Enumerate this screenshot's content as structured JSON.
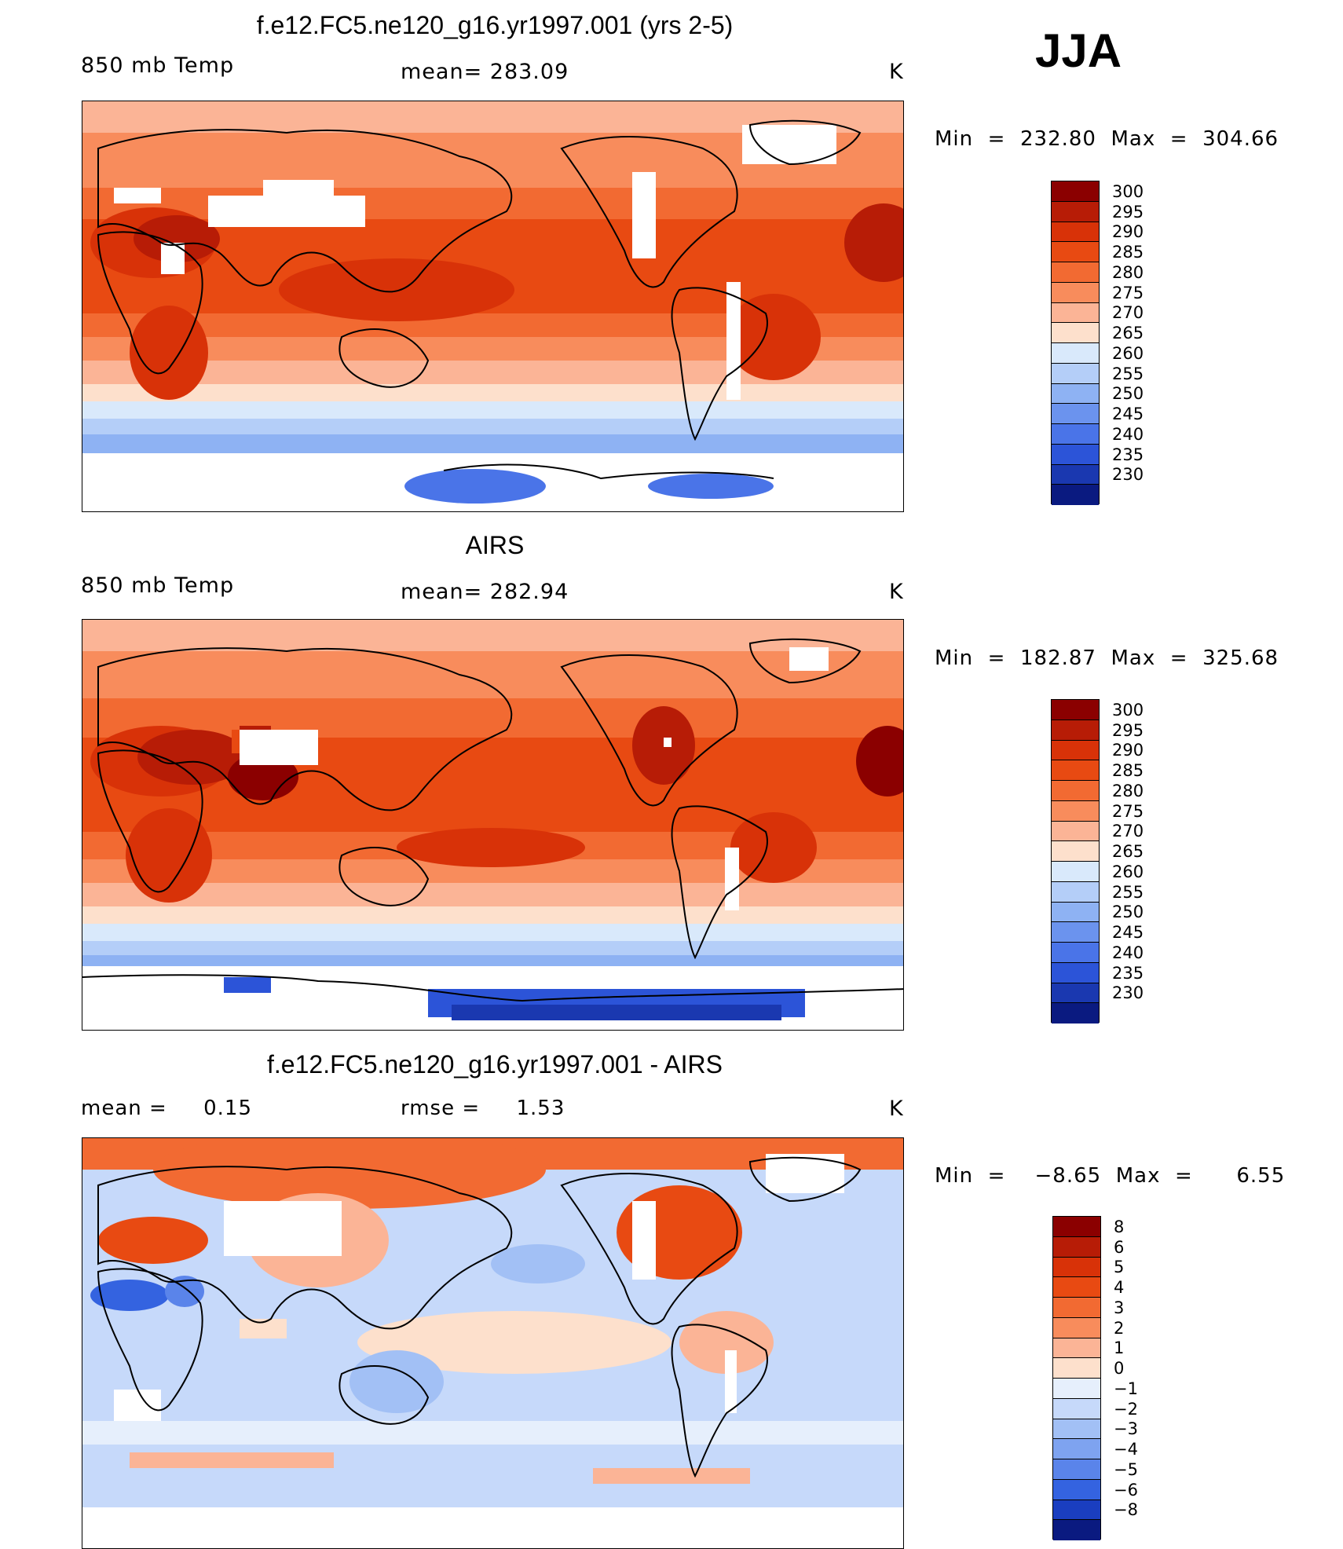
{
  "season": "JJA",
  "panels": [
    {
      "id": "model",
      "title": "f.e12.FC5.ne120_g16.yr1997.001 (yrs 2-5)",
      "left_label": "850 mb Temp",
      "center_label": "mean= 283.09",
      "units": "K",
      "stats": "Min  =  232.80  Max  =  304.66",
      "colorbar": {
        "labels": [
          "300",
          "295",
          "290",
          "285",
          "280",
          "275",
          "270",
          "265",
          "260",
          "255",
          "250",
          "245",
          "240",
          "235",
          "230"
        ],
        "colors": [
          "#8b0000",
          "#b71c06",
          "#d83208",
          "#e84a12",
          "#f26a32",
          "#f88c5c",
          "#fbb496",
          "#fde0cc",
          "#d9e9fb",
          "#b4cef8",
          "#8eb2f3",
          "#6b93ee",
          "#4a74e8",
          "#2c54d8",
          "#1a38b0",
          "#0a1a80"
        ]
      },
      "chart_data": {
        "type": "heatmap",
        "variable": "850 mb Temp",
        "units": "K",
        "mean": 283.09,
        "min": 232.8,
        "max": 304.66,
        "levels": [
          230,
          235,
          240,
          245,
          250,
          255,
          260,
          265,
          270,
          275,
          280,
          285,
          290,
          295,
          300
        ]
      }
    },
    {
      "id": "obs",
      "title": "AIRS",
      "left_label": "850 mb Temp",
      "center_label": "mean= 282.94",
      "units": "K",
      "stats": "Min  =  182.87  Max  =  325.68",
      "colorbar": {
        "labels": [
          "300",
          "295",
          "290",
          "285",
          "280",
          "275",
          "270",
          "265",
          "260",
          "255",
          "250",
          "245",
          "240",
          "235",
          "230"
        ],
        "colors": [
          "#8b0000",
          "#b71c06",
          "#d83208",
          "#e84a12",
          "#f26a32",
          "#f88c5c",
          "#fbb496",
          "#fde0cc",
          "#d9e9fb",
          "#b4cef8",
          "#8eb2f3",
          "#6b93ee",
          "#4a74e8",
          "#2c54d8",
          "#1a38b0",
          "#0a1a80"
        ]
      },
      "chart_data": {
        "type": "heatmap",
        "variable": "850 mb Temp",
        "units": "K",
        "mean": 282.94,
        "min": 182.87,
        "max": 325.68,
        "levels": [
          230,
          235,
          240,
          245,
          250,
          255,
          260,
          265,
          270,
          275,
          280,
          285,
          290,
          295,
          300
        ]
      }
    },
    {
      "id": "diff",
      "title": "f.e12.FC5.ne120_g16.yr1997.001 - AIRS",
      "left_label": "mean =     0.15",
      "center_label": "rmse =     1.53",
      "units": "K",
      "stats": "Min  =    −8.65  Max  =      6.55",
      "colorbar": {
        "labels": [
          "8",
          "6",
          "5",
          "4",
          "3",
          "2",
          "1",
          "0",
          "−1",
          "−2",
          "−3",
          "−4",
          "−5",
          "−6",
          "−8"
        ],
        "colors": [
          "#8b0000",
          "#b71c06",
          "#d83208",
          "#e84a12",
          "#f26a32",
          "#f88c5c",
          "#fbb496",
          "#fde0cc",
          "#e6effc",
          "#c6d9fa",
          "#a2c0f5",
          "#7ea3f0",
          "#5a84ea",
          "#3463e0",
          "#1a3ec0",
          "#0a1a80"
        ]
      },
      "chart_data": {
        "type": "heatmap",
        "variable": "difference",
        "units": "K",
        "mean": 0.15,
        "rmse": 1.53,
        "min": -8.65,
        "max": 6.55,
        "levels": [
          -8,
          -6,
          -5,
          -4,
          -3,
          -2,
          -1,
          0,
          1,
          2,
          3,
          4,
          5,
          6,
          8
        ]
      }
    }
  ]
}
